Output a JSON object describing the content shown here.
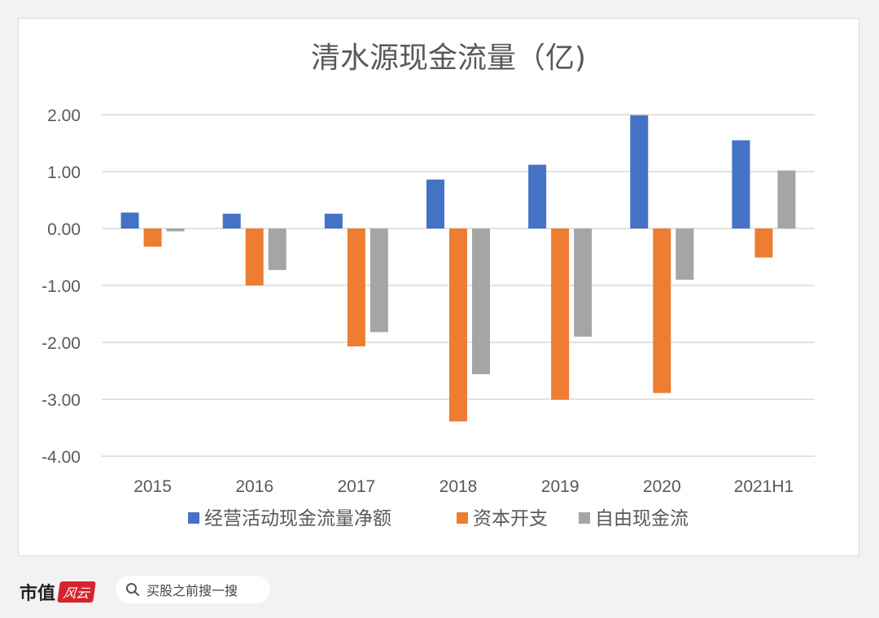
{
  "chart_data": {
    "type": "bar",
    "title": "清水源现金流量（亿)",
    "categories": [
      "2015",
      "2016",
      "2017",
      "2018",
      "2019",
      "2020",
      "2021H1"
    ],
    "series": [
      {
        "name": "经营活动现金流量净额",
        "color": "#4472c4",
        "values": [
          0.28,
          0.26,
          0.26,
          0.86,
          1.12,
          1.99,
          1.55
        ]
      },
      {
        "name": "资本开支",
        "color": "#ed7d31",
        "values": [
          -0.32,
          -1.0,
          -2.07,
          -3.39,
          -3.01,
          -2.89,
          -0.51
        ]
      },
      {
        "name": "自由现金流",
        "color": "#a5a5a5",
        "values": [
          -0.05,
          -0.73,
          -1.82,
          -2.56,
          -1.9,
          -0.9,
          1.02
        ]
      }
    ],
    "ylim": [
      -4,
      2
    ],
    "yticks": [
      2,
      1,
      0,
      -1,
      -2,
      -3,
      -4
    ],
    "ytick_labels": [
      "2.00",
      "1.00",
      "0.00",
      "-1.00",
      "-2.00",
      "-3.00",
      "-4.00"
    ],
    "grid": true,
    "legend_position": "bottom",
    "xlabel": "",
    "ylabel": ""
  },
  "footer": {
    "brand": "市值",
    "brand_logo": "风云",
    "search_placeholder": "买股之前搜一搜"
  },
  "colors": {
    "grid": "#d9d9d9",
    "axis_text": "#595959",
    "title_text": "#595959"
  }
}
